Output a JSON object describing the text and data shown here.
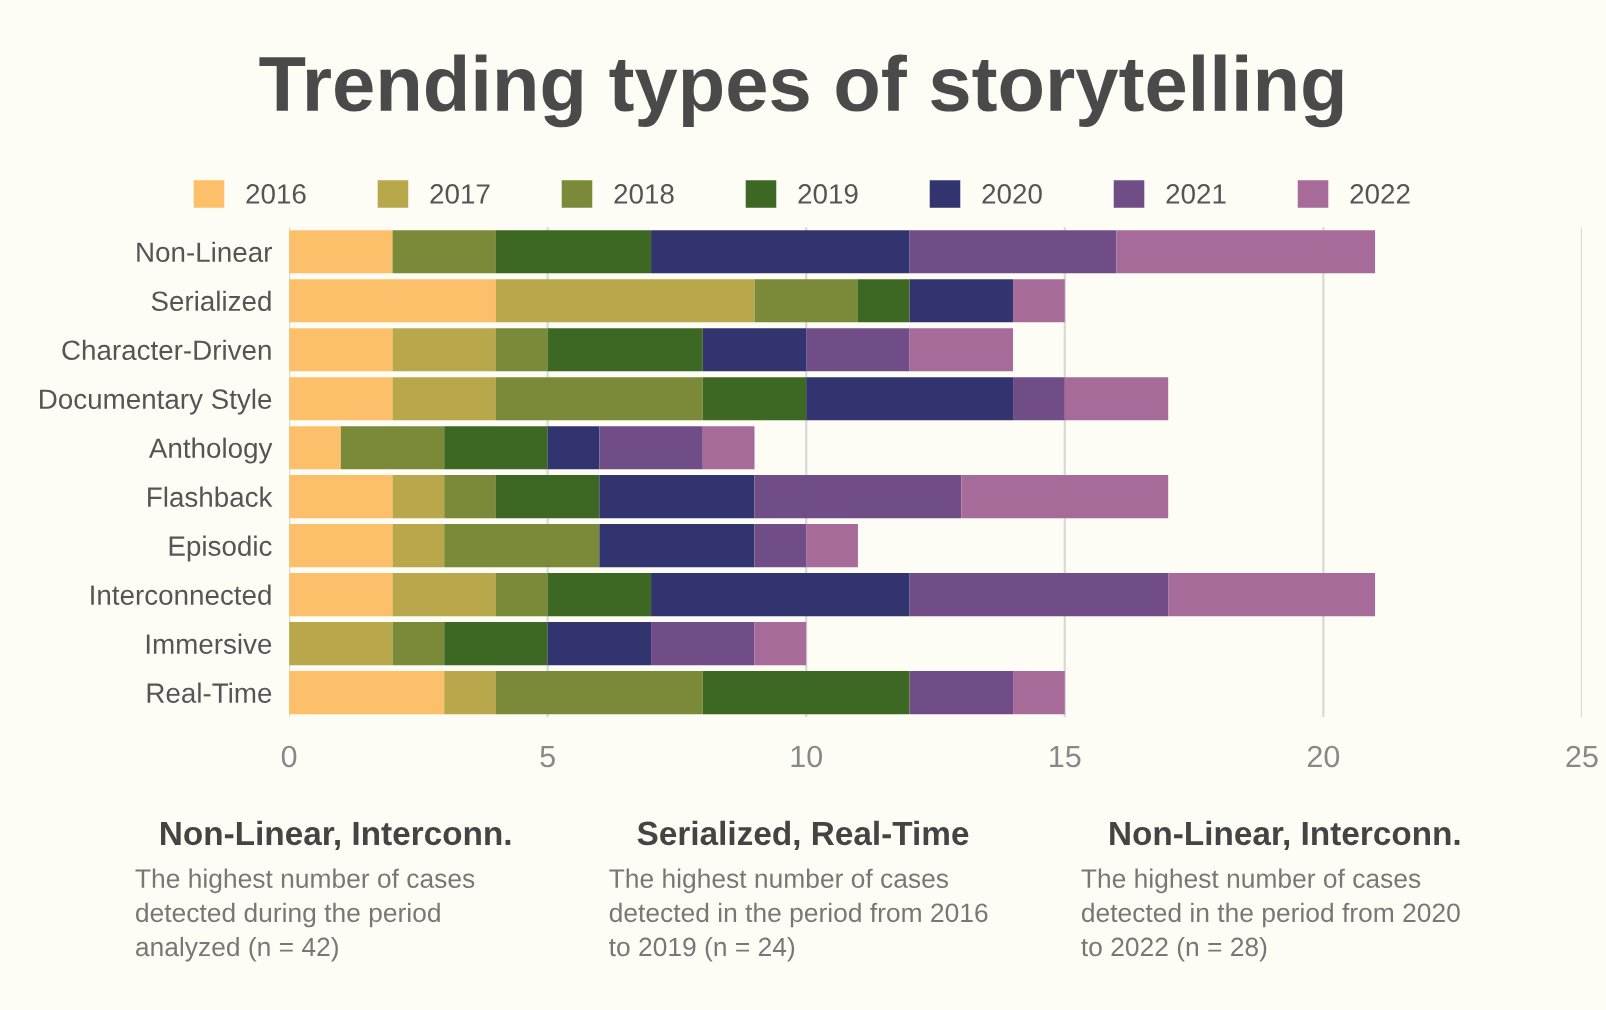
{
  "chart_data": {
    "type": "bar",
    "orientation": "horizontal",
    "stacked": true,
    "title": "Trending types of storytelling",
    "categories": [
      "Non-Linear",
      "Serialized",
      "Character-Driven",
      "Documentary Style",
      "Anthology",
      "Flashback",
      "Episodic",
      "Interconnected",
      "Immersive",
      "Real-Time"
    ],
    "series": [
      {
        "name": "2016",
        "color": "#fdc06a",
        "values": [
          2,
          4,
          2,
          2,
          1,
          2,
          2,
          2,
          0,
          3
        ]
      },
      {
        "name": "2017",
        "color": "#b8a74b",
        "values": [
          0,
          5,
          2,
          2,
          0,
          1,
          1,
          2,
          2,
          1
        ]
      },
      {
        "name": "2018",
        "color": "#7a8a38",
        "values": [
          2,
          2,
          1,
          4,
          2,
          1,
          3,
          1,
          1,
          4
        ]
      },
      {
        "name": "2019",
        "color": "#3d6824",
        "values": [
          3,
          1,
          3,
          2,
          2,
          2,
          0,
          2,
          2,
          4
        ]
      },
      {
        "name": "2020",
        "color": "#323470",
        "values": [
          5,
          2,
          2,
          4,
          1,
          3,
          3,
          5,
          2,
          0
        ]
      },
      {
        "name": "2021",
        "color": "#714d87",
        "values": [
          4,
          0,
          2,
          1,
          2,
          4,
          1,
          5,
          2,
          2
        ]
      },
      {
        "name": "2022",
        "color": "#a76b9a",
        "values": [
          5,
          1,
          2,
          2,
          1,
          4,
          1,
          4,
          1,
          1
        ]
      }
    ],
    "xlim": [
      0,
      25
    ],
    "xticks": [
      0,
      5,
      10,
      15,
      20,
      25
    ],
    "grid": "x",
    "legend": "top",
    "annotations": [
      "Non-Linear, Interconn.",
      "The highest number of cases\ndetected during the period\nanalyzed (n = 42)",
      "Serialized, Real-Time",
      "The highest number of cases\ndetected in the period from 2016\nto 2019 (n = 24)",
      "Non-Linear, Interconn.",
      "The highest number of cases\ndetected in the period from 2020\nto 2022 (n = 28)"
    ]
  }
}
